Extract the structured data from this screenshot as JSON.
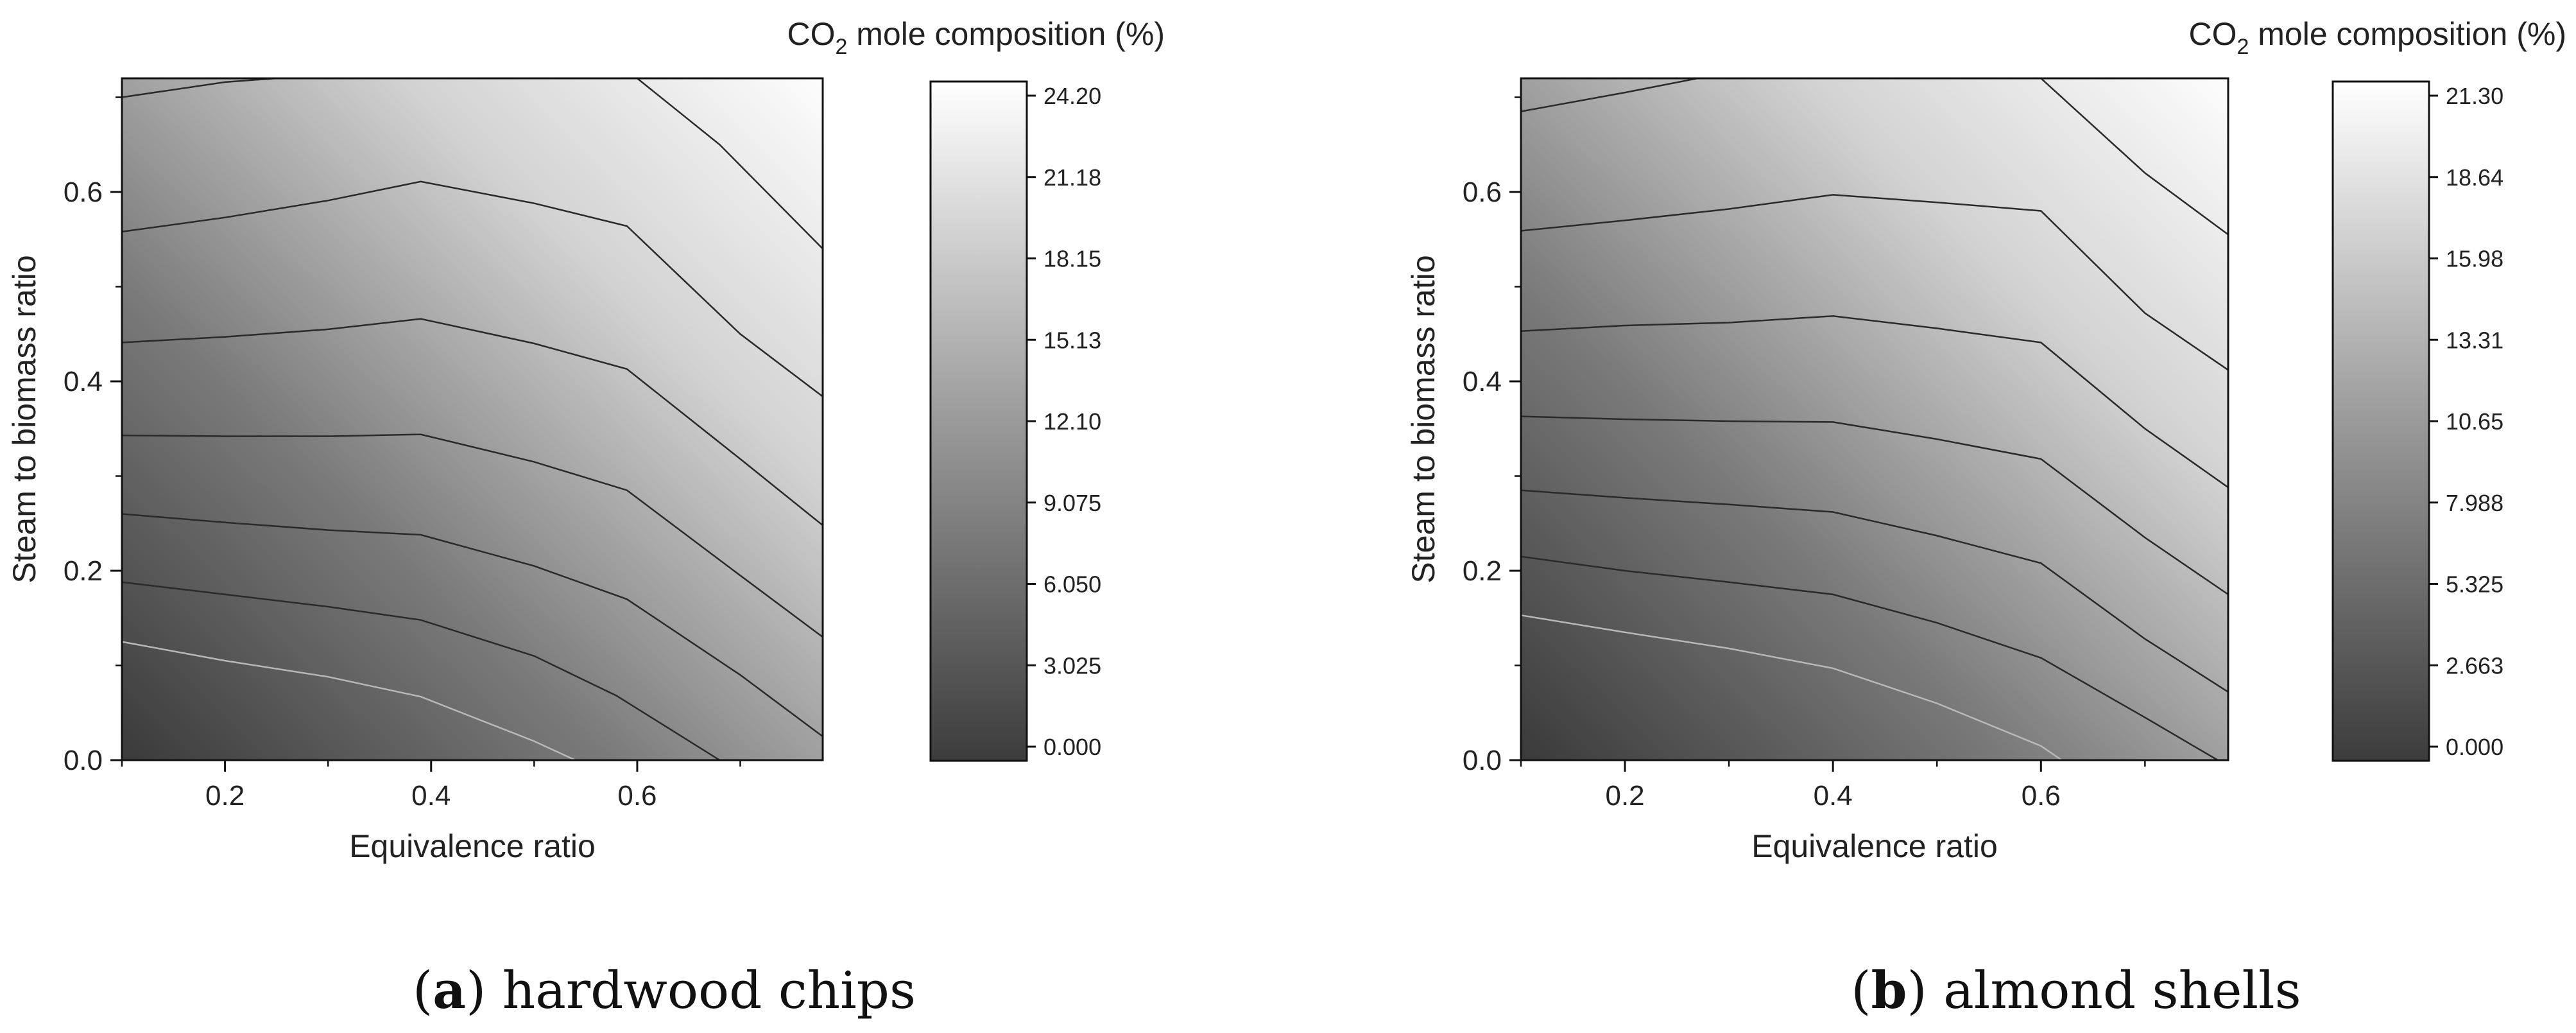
{
  "chart_data": [
    {
      "type": "contour",
      "panel_label": "a",
      "caption": "hardwood chips",
      "title": "CO",
      "title_sub": "2",
      "title_rest": " mole composition (%)",
      "xlabel": "Equivalence ratio",
      "ylabel": "Steam to biomass ratio",
      "xlim": [
        0.1,
        0.78
      ],
      "ylim": [
        0.0,
        0.72
      ],
      "xticks": [
        "0.2",
        "0.4",
        "0.6"
      ],
      "xtick_values": [
        0.2,
        0.4,
        0.6
      ],
      "yticks": [
        "0.0",
        "0.2",
        "0.4",
        "0.6"
      ],
      "ytick_values": [
        0.0,
        0.2,
        0.4,
        0.6
      ],
      "colorbar_ticks": [
        "0.000",
        "3.025",
        "6.050",
        "9.075",
        "12.10",
        "15.13",
        "18.15",
        "21.18",
        "24.20"
      ],
      "colorbar_range": [
        0.0,
        24.2
      ],
      "contours": [
        {
          "light": true,
          "x": [
            0.1,
            0.2,
            0.3,
            0.39,
            0.5,
            0.54
          ],
          "y": [
            0.125,
            0.105,
            0.088,
            0.067,
            0.02,
            0.0
          ]
        },
        {
          "light": false,
          "x": [
            0.1,
            0.2,
            0.3,
            0.39,
            0.5,
            0.58,
            0.68
          ],
          "y": [
            0.188,
            0.175,
            0.162,
            0.148,
            0.11,
            0.068,
            0.0
          ]
        },
        {
          "light": false,
          "x": [
            0.1,
            0.2,
            0.3,
            0.39,
            0.5,
            0.59,
            0.7,
            0.78
          ],
          "y": [
            0.26,
            0.251,
            0.243,
            0.238,
            0.205,
            0.17,
            0.09,
            0.025
          ]
        },
        {
          "light": false,
          "x": [
            0.1,
            0.2,
            0.3,
            0.39,
            0.5,
            0.59,
            0.7,
            0.78
          ],
          "y": [
            0.343,
            0.342,
            0.342,
            0.344,
            0.315,
            0.285,
            0.195,
            0.13
          ]
        },
        {
          "light": false,
          "x": [
            0.1,
            0.2,
            0.3,
            0.39,
            0.5,
            0.59,
            0.7,
            0.78
          ],
          "y": [
            0.441,
            0.447,
            0.455,
            0.466,
            0.44,
            0.413,
            0.318,
            0.248
          ]
        },
        {
          "light": false,
          "x": [
            0.1,
            0.2,
            0.3,
            0.39,
            0.5,
            0.59,
            0.7,
            0.78
          ],
          "y": [
            0.558,
            0.573,
            0.591,
            0.611,
            0.588,
            0.564,
            0.45,
            0.384
          ]
        },
        {
          "light": false,
          "x": [
            0.1,
            0.2,
            0.25
          ],
          "y": [
            0.7,
            0.716,
            0.72
          ]
        },
        {
          "light": false,
          "x": [
            0.6,
            0.68,
            0.78
          ],
          "y": [
            0.72,
            0.65,
            0.54
          ]
        }
      ]
    },
    {
      "type": "contour",
      "panel_label": "b",
      "caption": "almond shells",
      "title": "CO",
      "title_sub": "2",
      "title_rest": " mole composition (%)",
      "xlabel": "Equivalence ratio",
      "ylabel": "Steam to biomass ratio",
      "xlim": [
        0.1,
        0.78
      ],
      "ylim": [
        0.0,
        0.72
      ],
      "xticks": [
        "0.2",
        "0.4",
        "0.6"
      ],
      "xtick_values": [
        0.2,
        0.4,
        0.6
      ],
      "yticks": [
        "0.0",
        "0.2",
        "0.4",
        "0.6"
      ],
      "ytick_values": [
        0.0,
        0.2,
        0.4,
        0.6
      ],
      "colorbar_ticks": [
        "0.000",
        "2.663",
        "5.325",
        "7.988",
        "10.65",
        "13.31",
        "15.98",
        "18.64",
        "21.30"
      ],
      "colorbar_range": [
        0.0,
        21.3
      ],
      "contours": [
        {
          "light": true,
          "x": [
            0.1,
            0.2,
            0.3,
            0.4,
            0.5,
            0.6,
            0.62
          ],
          "y": [
            0.153,
            0.135,
            0.118,
            0.097,
            0.06,
            0.015,
            0.0
          ]
        },
        {
          "light": false,
          "x": [
            0.1,
            0.2,
            0.3,
            0.4,
            0.5,
            0.6,
            0.7,
            0.77
          ],
          "y": [
            0.215,
            0.2,
            0.188,
            0.175,
            0.145,
            0.108,
            0.045,
            0.0
          ]
        },
        {
          "light": false,
          "x": [
            0.1,
            0.2,
            0.3,
            0.4,
            0.5,
            0.6,
            0.7,
            0.78
          ],
          "y": [
            0.285,
            0.277,
            0.27,
            0.262,
            0.237,
            0.208,
            0.128,
            0.072
          ]
        },
        {
          "light": false,
          "x": [
            0.1,
            0.2,
            0.3,
            0.4,
            0.5,
            0.6,
            0.7,
            0.78
          ],
          "y": [
            0.363,
            0.36,
            0.358,
            0.357,
            0.339,
            0.318,
            0.235,
            0.175
          ]
        },
        {
          "light": false,
          "x": [
            0.1,
            0.2,
            0.3,
            0.4,
            0.5,
            0.6,
            0.7,
            0.78
          ],
          "y": [
            0.453,
            0.459,
            0.462,
            0.469,
            0.456,
            0.441,
            0.35,
            0.288
          ]
        },
        {
          "light": false,
          "x": [
            0.1,
            0.2,
            0.3,
            0.4,
            0.5,
            0.6,
            0.7,
            0.78
          ],
          "y": [
            0.559,
            0.57,
            0.582,
            0.597,
            0.589,
            0.58,
            0.472,
            0.412
          ]
        },
        {
          "light": false,
          "x": [
            0.1,
            0.2,
            0.27
          ],
          "y": [
            0.685,
            0.705,
            0.72
          ]
        },
        {
          "light": false,
          "x": [
            0.6,
            0.7,
            0.78
          ],
          "y": [
            0.72,
            0.62,
            0.555
          ]
        }
      ]
    }
  ]
}
